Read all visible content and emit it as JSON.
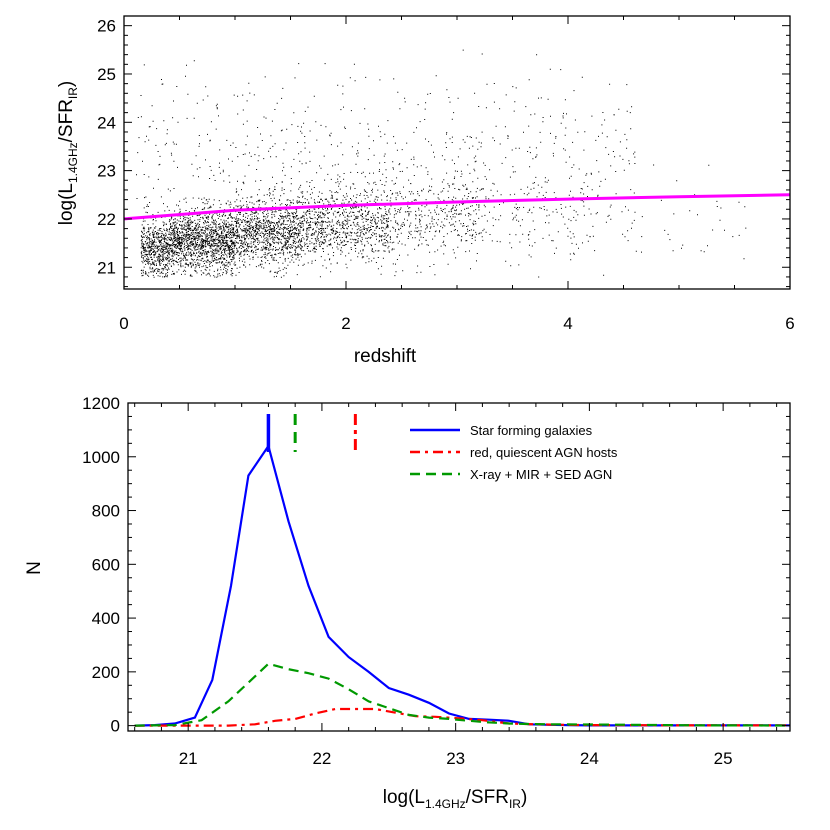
{
  "chart_data": [
    {
      "type": "scatter",
      "title": "",
      "xlabel": "redshift",
      "ylabel_parts": [
        "log(L",
        "1.4GHz",
        "/SFR",
        "IR",
        ")"
      ],
      "xlim": [
        0,
        6
      ],
      "ylim": [
        20.55,
        26.2
      ],
      "xticks": [
        0,
        2,
        4,
        6
      ],
      "yticks": [
        21,
        22,
        23,
        24,
        25,
        26
      ],
      "grid": false,
      "points_description_note": "",
      "density_regions": [
        {
          "x": [
            0.15,
            0.4
          ],
          "y_center": 21.4,
          "y_sd": 0.28,
          "n": 520
        },
        {
          "x": [
            0.4,
            1.0
          ],
          "y_center": 21.55,
          "y_sd": 0.32,
          "n": 1500
        },
        {
          "x": [
            1.0,
            1.6
          ],
          "y_center": 21.75,
          "y_sd": 0.35,
          "n": 1100
        },
        {
          "x": [
            1.6,
            2.4
          ],
          "y_center": 21.9,
          "y_sd": 0.38,
          "n": 850
        },
        {
          "x": [
            2.4,
            3.2
          ],
          "y_center": 22.05,
          "y_sd": 0.42,
          "n": 380
        },
        {
          "x": [
            3.2,
            4.2
          ],
          "y_center": 22.05,
          "y_sd": 0.45,
          "n": 120
        },
        {
          "x": [
            4.2,
            5.6
          ],
          "y_center": 21.95,
          "y_sd": 0.45,
          "n": 45
        },
        {
          "x": [
            0.1,
            4.6
          ],
          "y_center": 23.2,
          "y_sd": 0.9,
          "n": 700
        }
      ],
      "trend_line": {
        "name": "",
        "color": "#ff00ff",
        "x": [
          0,
          1,
          2,
          3,
          4,
          5,
          6
        ],
        "y": [
          22.0,
          22.18,
          22.28,
          22.35,
          22.41,
          22.46,
          22.5
        ]
      }
    },
    {
      "type": "line",
      "title": "",
      "xlabel_parts": [
        "log(L",
        "1.4GHz",
        "/SFR",
        "IR",
        ")"
      ],
      "ylabel": "N",
      "xlim": [
        20.55,
        25.5
      ],
      "ylim": [
        -20,
        1200
      ],
      "xticks": [
        21,
        22,
        23,
        24,
        25
      ],
      "yticks": [
        0,
        200,
        400,
        600,
        800,
        1000,
        1200
      ],
      "legend_position": "top-right",
      "series": [
        {
          "name": "Star forming galaxies",
          "color": "#0000ff",
          "dash": "solid",
          "x": [
            20.6,
            20.75,
            20.9,
            21.05,
            21.18,
            21.32,
            21.45,
            21.6,
            21.75,
            21.9,
            22.05,
            22.2,
            22.35,
            22.5,
            22.65,
            22.8,
            22.95,
            23.1,
            23.25,
            23.4,
            23.55,
            23.7,
            23.85,
            24.0,
            24.3,
            24.6,
            24.9,
            25.2,
            25.5
          ],
          "y": [
            0,
            2,
            8,
            30,
            170,
            520,
            930,
            1040,
            760,
            520,
            330,
            255,
            200,
            140,
            115,
            85,
            45,
            25,
            22,
            18,
            5,
            3,
            2,
            1,
            1,
            1,
            1,
            1,
            1
          ]
        },
        {
          "name": "red, quiescent AGN hosts",
          "color": "#ff0000",
          "dash": "dashdot",
          "x": [
            20.6,
            21.0,
            21.3,
            21.5,
            21.65,
            21.8,
            21.95,
            22.1,
            22.25,
            22.4,
            22.55,
            22.7,
            22.85,
            23.0,
            23.2,
            23.4,
            23.6,
            23.8,
            24.0,
            24.3,
            24.6,
            24.9,
            25.2,
            25.5
          ],
          "y": [
            0,
            0,
            0,
            5,
            18,
            25,
            45,
            62,
            62,
            62,
            48,
            35,
            33,
            28,
            20,
            8,
            5,
            3,
            2,
            2,
            1,
            1,
            1,
            1
          ]
        },
        {
          "name": "X-ray + MIR + SED AGN",
          "color": "#009900",
          "dash": "dashed",
          "x": [
            20.6,
            20.9,
            21.1,
            21.3,
            21.45,
            21.6,
            21.75,
            21.9,
            22.05,
            22.2,
            22.35,
            22.5,
            22.65,
            22.8,
            22.95,
            23.1,
            23.25,
            23.4,
            23.55,
            23.7,
            24.0,
            24.3,
            24.6,
            24.9,
            25.2,
            25.5
          ],
          "y": [
            0,
            2,
            20,
            90,
            160,
            230,
            210,
            195,
            175,
            135,
            90,
            65,
            40,
            30,
            25,
            18,
            12,
            8,
            6,
            5,
            4,
            3,
            2,
            1,
            1,
            0
          ]
        }
      ],
      "median_markers": [
        {
          "x": 21.6,
          "color": "#0000ff",
          "style": "solid"
        },
        {
          "x": 21.8,
          "color": "#009900",
          "style": "dashed"
        },
        {
          "x": 22.25,
          "color": "#ff0000",
          "style": "dashdot"
        }
      ]
    }
  ]
}
